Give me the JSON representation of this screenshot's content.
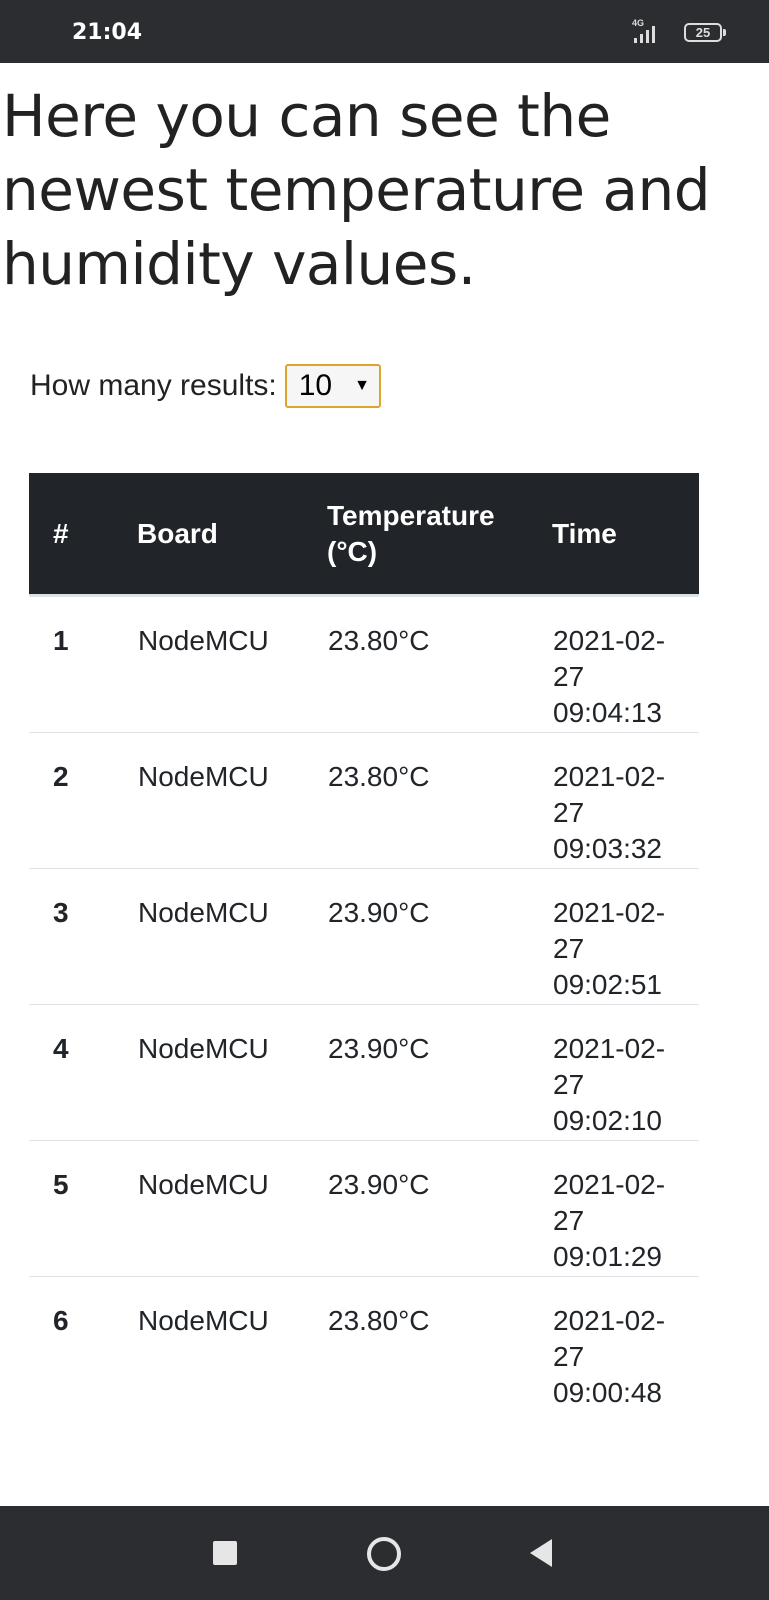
{
  "status": {
    "time": "21:04",
    "network": "4G",
    "battery": "25"
  },
  "page": {
    "heading": "Here you can see the newest temperature and humidity values.",
    "results_label": "How many results:",
    "results_value": "10"
  },
  "table": {
    "headers": [
      "#",
      "Board",
      "Temperature (°C)",
      "Time"
    ],
    "rows": [
      {
        "index": "1",
        "board": "NodeMCU",
        "temperature": "23.80°C",
        "time": "2021-02-27 09:04:13"
      },
      {
        "index": "2",
        "board": "NodeMCU",
        "temperature": "23.80°C",
        "time": "2021-02-27 09:03:32"
      },
      {
        "index": "3",
        "board": "NodeMCU",
        "temperature": "23.90°C",
        "time": "2021-02-27 09:02:51"
      },
      {
        "index": "4",
        "board": "NodeMCU",
        "temperature": "23.90°C",
        "time": "2021-02-27 09:02:10"
      },
      {
        "index": "5",
        "board": "NodeMCU",
        "temperature": "23.90°C",
        "time": "2021-02-27 09:01:29"
      },
      {
        "index": "6",
        "board": "NodeMCU",
        "temperature": "23.80°C",
        "time": "2021-02-27 09:00:48"
      }
    ]
  },
  "navbar": {
    "icons": [
      "recents-square-icon",
      "home-circle-icon",
      "back-triangle-icon"
    ]
  },
  "colors": {
    "header_bg": "#212529",
    "select_border": "#e0a32e",
    "bar_bg": "#2c2d31"
  }
}
